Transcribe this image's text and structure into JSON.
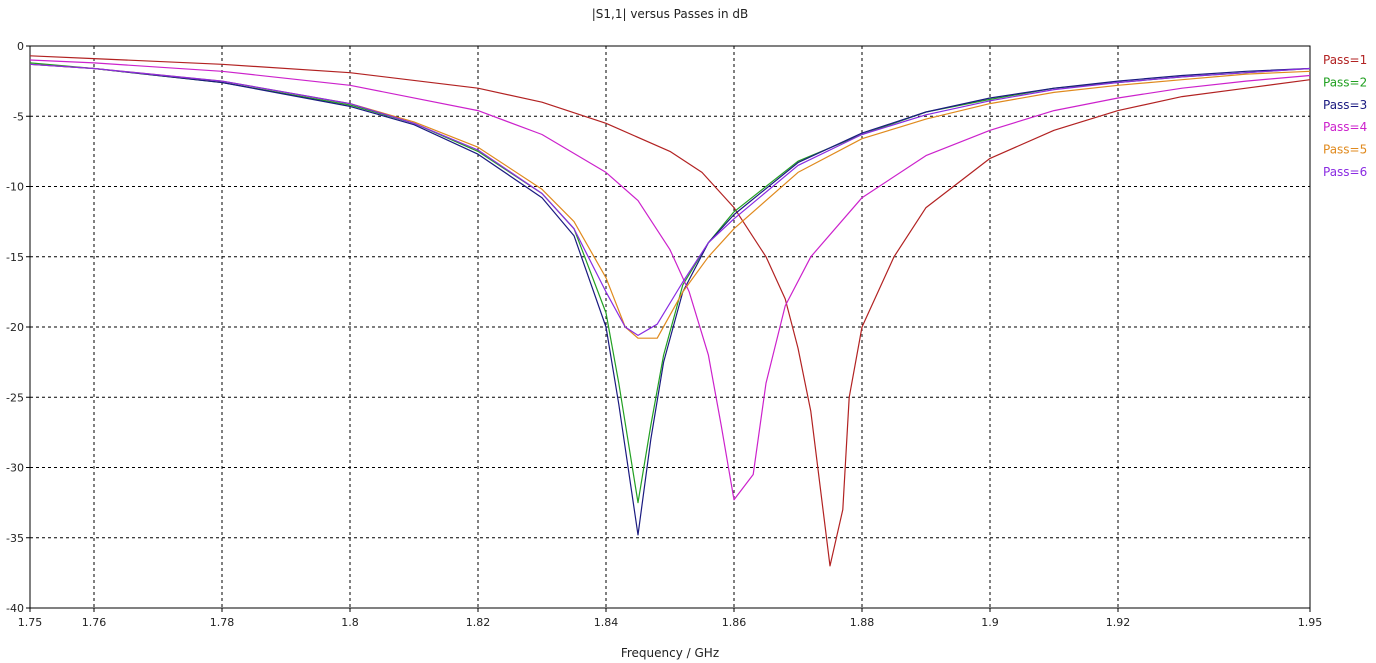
{
  "chart_data": {
    "type": "line",
    "title": "|S1,1| versus Passes in dB",
    "xlabel": "Frequency / GHz",
    "ylabel": "",
    "xlim": [
      1.75,
      1.95
    ],
    "ylim": [
      -40,
      0
    ],
    "grid": true,
    "legend_position": "right",
    "x_ticks": [
      {
        "v": 1.75,
        "t": "1.75"
      },
      {
        "v": 1.76,
        "t": "1.76"
      },
      {
        "v": 1.78,
        "t": "1.78"
      },
      {
        "v": 1.8,
        "t": "1.8"
      },
      {
        "v": 1.82,
        "t": "1.82"
      },
      {
        "v": 1.84,
        "t": "1.84"
      },
      {
        "v": 1.86,
        "t": "1.86"
      },
      {
        "v": 1.88,
        "t": "1.88"
      },
      {
        "v": 1.9,
        "t": "1.9"
      },
      {
        "v": 1.92,
        "t": "1.92"
      },
      {
        "v": 1.95,
        "t": "1.95"
      }
    ],
    "y_ticks": [
      {
        "v": 0,
        "t": "0"
      },
      {
        "v": -5,
        "t": "-5"
      },
      {
        "v": -10,
        "t": "-10"
      },
      {
        "v": -15,
        "t": "-15"
      },
      {
        "v": -20,
        "t": "-20"
      },
      {
        "v": -25,
        "t": "-25"
      },
      {
        "v": -30,
        "t": "-30"
      },
      {
        "v": -35,
        "t": "-35"
      },
      {
        "v": -40,
        "t": "-40"
      }
    ],
    "series": [
      {
        "name": "Pass=1",
        "color": "#b22222",
        "points": [
          [
            1.75,
            -0.7
          ],
          [
            1.76,
            -0.9
          ],
          [
            1.78,
            -1.3
          ],
          [
            1.8,
            -1.9
          ],
          [
            1.82,
            -3.0
          ],
          [
            1.83,
            -4.0
          ],
          [
            1.84,
            -5.5
          ],
          [
            1.85,
            -7.5
          ],
          [
            1.855,
            -9.0
          ],
          [
            1.86,
            -11.5
          ],
          [
            1.865,
            -15.0
          ],
          [
            1.868,
            -18.0
          ],
          [
            1.87,
            -21.5
          ],
          [
            1.872,
            -26.0
          ],
          [
            1.875,
            -37.0
          ],
          [
            1.877,
            -33.0
          ],
          [
            1.878,
            -25.0
          ],
          [
            1.88,
            -20.0
          ],
          [
            1.885,
            -15.0
          ],
          [
            1.89,
            -11.5
          ],
          [
            1.9,
            -8.0
          ],
          [
            1.91,
            -6.0
          ],
          [
            1.92,
            -4.6
          ],
          [
            1.93,
            -3.6
          ],
          [
            1.94,
            -3.0
          ],
          [
            1.95,
            -2.4
          ]
        ]
      },
      {
        "name": "Pass=2",
        "color": "#22a022",
        "points": [
          [
            1.75,
            -1.2
          ],
          [
            1.76,
            -1.6
          ],
          [
            1.78,
            -2.6
          ],
          [
            1.8,
            -4.2
          ],
          [
            1.81,
            -5.5
          ],
          [
            1.82,
            -7.5
          ],
          [
            1.83,
            -10.5
          ],
          [
            1.835,
            -13.0
          ],
          [
            1.84,
            -19.0
          ],
          [
            1.842,
            -24.0
          ],
          [
            1.845,
            -32.5
          ],
          [
            1.847,
            -27.0
          ],
          [
            1.849,
            -22.0
          ],
          [
            1.852,
            -17.0
          ],
          [
            1.856,
            -14.0
          ],
          [
            1.86,
            -11.8
          ],
          [
            1.87,
            -8.2
          ],
          [
            1.88,
            -6.3
          ],
          [
            1.89,
            -4.7
          ],
          [
            1.9,
            -3.8
          ],
          [
            1.91,
            -3.0
          ],
          [
            1.92,
            -2.6
          ],
          [
            1.93,
            -2.2
          ],
          [
            1.94,
            -1.9
          ],
          [
            1.95,
            -1.6
          ]
        ]
      },
      {
        "name": "Pass=3",
        "color": "#1a1a80",
        "points": [
          [
            1.75,
            -1.3
          ],
          [
            1.76,
            -1.6
          ],
          [
            1.78,
            -2.6
          ],
          [
            1.8,
            -4.3
          ],
          [
            1.81,
            -5.6
          ],
          [
            1.82,
            -7.7
          ],
          [
            1.83,
            -10.8
          ],
          [
            1.835,
            -13.5
          ],
          [
            1.84,
            -20.0
          ],
          [
            1.842,
            -25.5
          ],
          [
            1.845,
            -34.8
          ],
          [
            1.847,
            -28.0
          ],
          [
            1.849,
            -22.5
          ],
          [
            1.852,
            -17.5
          ],
          [
            1.856,
            -14.0
          ],
          [
            1.86,
            -12.0
          ],
          [
            1.87,
            -8.3
          ],
          [
            1.88,
            -6.2
          ],
          [
            1.89,
            -4.7
          ],
          [
            1.9,
            -3.7
          ],
          [
            1.91,
            -3.0
          ],
          [
            1.92,
            -2.5
          ],
          [
            1.93,
            -2.1
          ],
          [
            1.94,
            -1.8
          ],
          [
            1.95,
            -1.6
          ]
        ]
      },
      {
        "name": "Pass=4",
        "color": "#cc22cc",
        "points": [
          [
            1.75,
            -1.0
          ],
          [
            1.76,
            -1.2
          ],
          [
            1.78,
            -1.8
          ],
          [
            1.8,
            -2.8
          ],
          [
            1.82,
            -4.6
          ],
          [
            1.83,
            -6.3
          ],
          [
            1.84,
            -9.0
          ],
          [
            1.845,
            -11.0
          ],
          [
            1.85,
            -14.5
          ],
          [
            1.853,
            -17.5
          ],
          [
            1.856,
            -22.0
          ],
          [
            1.858,
            -27.0
          ],
          [
            1.86,
            -32.3
          ],
          [
            1.863,
            -30.5
          ],
          [
            1.865,
            -24.0
          ],
          [
            1.868,
            -18.5
          ],
          [
            1.872,
            -15.0
          ],
          [
            1.88,
            -10.8
          ],
          [
            1.89,
            -7.8
          ],
          [
            1.9,
            -6.0
          ],
          [
            1.91,
            -4.6
          ],
          [
            1.92,
            -3.7
          ],
          [
            1.93,
            -3.0
          ],
          [
            1.94,
            -2.5
          ],
          [
            1.95,
            -2.1
          ]
        ]
      },
      {
        "name": "Pass=5",
        "color": "#e08a1e",
        "points": [
          [
            1.75,
            -1.3
          ],
          [
            1.76,
            -1.6
          ],
          [
            1.78,
            -2.5
          ],
          [
            1.8,
            -4.1
          ],
          [
            1.81,
            -5.4
          ],
          [
            1.82,
            -7.2
          ],
          [
            1.83,
            -10.2
          ],
          [
            1.835,
            -12.5
          ],
          [
            1.84,
            -16.5
          ],
          [
            1.843,
            -20.0
          ],
          [
            1.845,
            -20.8
          ],
          [
            1.848,
            -20.8
          ],
          [
            1.852,
            -17.5
          ],
          [
            1.856,
            -15.0
          ],
          [
            1.86,
            -13.0
          ],
          [
            1.87,
            -9.0
          ],
          [
            1.88,
            -6.6
          ],
          [
            1.89,
            -5.2
          ],
          [
            1.9,
            -4.1
          ],
          [
            1.91,
            -3.3
          ],
          [
            1.92,
            -2.8
          ],
          [
            1.93,
            -2.4
          ],
          [
            1.94,
            -2.0
          ],
          [
            1.95,
            -1.8
          ]
        ]
      },
      {
        "name": "Pass=6",
        "color": "#8a2be2",
        "points": [
          [
            1.75,
            -1.3
          ],
          [
            1.76,
            -1.6
          ],
          [
            1.78,
            -2.5
          ],
          [
            1.8,
            -4.1
          ],
          [
            1.81,
            -5.5
          ],
          [
            1.82,
            -7.4
          ],
          [
            1.83,
            -10.5
          ],
          [
            1.835,
            -13.0
          ],
          [
            1.84,
            -17.5
          ],
          [
            1.843,
            -20.0
          ],
          [
            1.845,
            -20.6
          ],
          [
            1.848,
            -19.8
          ],
          [
            1.852,
            -16.8
          ],
          [
            1.856,
            -14.0
          ],
          [
            1.86,
            -12.3
          ],
          [
            1.87,
            -8.5
          ],
          [
            1.88,
            -6.3
          ],
          [
            1.89,
            -4.9
          ],
          [
            1.9,
            -3.9
          ],
          [
            1.91,
            -3.1
          ],
          [
            1.92,
            -2.6
          ],
          [
            1.93,
            -2.2
          ],
          [
            1.94,
            -1.9
          ],
          [
            1.95,
            -1.6
          ]
        ]
      }
    ]
  }
}
